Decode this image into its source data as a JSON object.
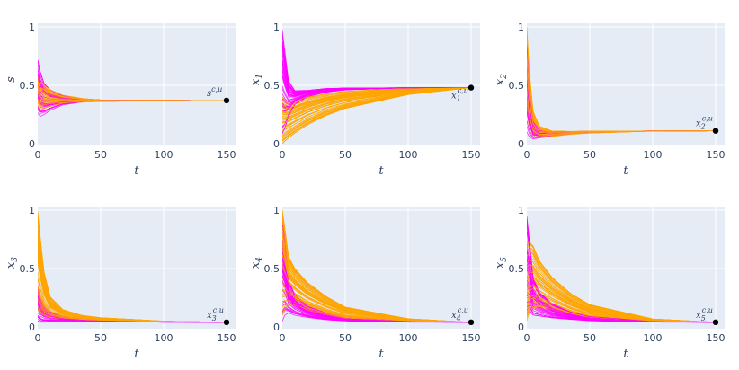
{
  "chart_data": [
    {
      "type": "line",
      "ylabel": "s",
      "xlabel": "t",
      "xlim": [
        0,
        150
      ],
      "ylim": [
        0,
        1
      ],
      "x_ticks": [
        "0",
        "50",
        "100",
        "150"
      ],
      "y_ticks": [
        "0",
        "0.5",
        "1"
      ],
      "grid": true,
      "endpoint": {
        "label": "s",
        "sup": "c,u",
        "sub": "",
        "x": 150,
        "y": 0.37
      },
      "series": [
        {
          "color": "#ff00ff",
          "count": 40,
          "x": [
            0,
            2,
            5,
            10,
            20,
            35,
            50,
            100,
            150
          ],
          "y_range": [
            [
              0.25,
              0.72
            ],
            [
              0.22,
              0.62
            ],
            [
              0.24,
              0.52
            ],
            [
              0.28,
              0.46
            ],
            [
              0.33,
              0.41
            ],
            [
              0.355,
              0.385
            ],
            [
              0.365,
              0.375
            ],
            [
              0.37,
              0.372
            ],
            [
              0.37,
              0.37
            ]
          ]
        },
        {
          "color": "#ffa500",
          "count": 60,
          "x": [
            0,
            2,
            5,
            10,
            20,
            35,
            50,
            100,
            150
          ],
          "y_range": [
            [
              0.3,
              0.6
            ],
            [
              0.28,
              0.55
            ],
            [
              0.3,
              0.52
            ],
            [
              0.32,
              0.47
            ],
            [
              0.34,
              0.42
            ],
            [
              0.355,
              0.39
            ],
            [
              0.36,
              0.375
            ],
            [
              0.37,
              0.372
            ],
            [
              0.37,
              0.37
            ]
          ]
        }
      ]
    },
    {
      "type": "line",
      "ylabel": "x",
      "ylabel_sub": "1",
      "xlabel": "t",
      "xlim": [
        0,
        150
      ],
      "ylim": [
        0,
        1
      ],
      "x_ticks": [
        "0",
        "50",
        "100",
        "150"
      ],
      "y_ticks": [
        "0",
        "0.5",
        "1"
      ],
      "grid": true,
      "endpoint": {
        "label": "x",
        "sup": "c,u",
        "sub": "1",
        "x": 150,
        "y": 0.48
      },
      "series": [
        {
          "color": "#ff00ff",
          "count": 40,
          "x": [
            0,
            2,
            5,
            10,
            20,
            35,
            50,
            100,
            150
          ],
          "y_range": [
            [
              0.05,
              1.0
            ],
            [
              0.1,
              0.82
            ],
            [
              0.22,
              0.55
            ],
            [
              0.33,
              0.46
            ],
            [
              0.4,
              0.46
            ],
            [
              0.44,
              0.475
            ],
            [
              0.46,
              0.478
            ],
            [
              0.478,
              0.48
            ],
            [
              0.48,
              0.48
            ]
          ]
        },
        {
          "color": "#ffa500",
          "count": 60,
          "x": [
            0,
            2,
            5,
            10,
            20,
            35,
            50,
            100,
            150
          ],
          "y_range": [
            [
              0.0,
              0.4
            ],
            [
              0.02,
              0.38
            ],
            [
              0.05,
              0.36
            ],
            [
              0.09,
              0.37
            ],
            [
              0.16,
              0.4
            ],
            [
              0.24,
              0.43
            ],
            [
              0.3,
              0.45
            ],
            [
              0.42,
              0.475
            ],
            [
              0.48,
              0.48
            ]
          ]
        }
      ]
    },
    {
      "type": "line",
      "ylabel": "x",
      "ylabel_sub": "2",
      "xlabel": "t",
      "xlim": [
        0,
        150
      ],
      "ylim": [
        0,
        1
      ],
      "x_ticks": [
        "0",
        "50",
        "100",
        "150"
      ],
      "y_ticks": [
        "0",
        "0.5",
        "1"
      ],
      "grid": true,
      "endpoint": {
        "label": "x",
        "sup": "c,u",
        "sub": "2",
        "x": 150,
        "y": 0.11
      },
      "series": [
        {
          "color": "#ff00ff",
          "count": 40,
          "x": [
            0,
            2,
            5,
            10,
            20,
            35,
            50,
            100,
            150
          ],
          "y_range": [
            [
              0.1,
              0.9
            ],
            [
              0.06,
              0.5
            ],
            [
              0.04,
              0.2
            ],
            [
              0.05,
              0.12
            ],
            [
              0.07,
              0.1
            ],
            [
              0.085,
              0.105
            ],
            [
              0.095,
              0.108
            ],
            [
              0.108,
              0.11
            ],
            [
              0.11,
              0.11
            ]
          ]
        },
        {
          "color": "#ffa500",
          "count": 60,
          "x": [
            0,
            2,
            5,
            10,
            20,
            35,
            50,
            100,
            150
          ],
          "y_range": [
            [
              0.2,
              1.0
            ],
            [
              0.12,
              0.62
            ],
            [
              0.07,
              0.28
            ],
            [
              0.05,
              0.15
            ],
            [
              0.06,
              0.11
            ],
            [
              0.08,
              0.106
            ],
            [
              0.09,
              0.108
            ],
            [
              0.107,
              0.11
            ],
            [
              0.11,
              0.11
            ]
          ]
        }
      ]
    },
    {
      "type": "line",
      "ylabel": "x",
      "ylabel_sub": "3",
      "xlabel": "t",
      "xlim": [
        0,
        150
      ],
      "ylim": [
        0,
        1
      ],
      "x_ticks": [
        "0",
        "50",
        "100",
        "150"
      ],
      "y_ticks": [
        "0",
        "0.5",
        "1"
      ],
      "grid": true,
      "endpoint": {
        "label": "x",
        "sup": "c,u",
        "sub": "3",
        "x": 150,
        "y": 0.04
      },
      "series": [
        {
          "color": "#ff00ff",
          "count": 40,
          "x": [
            0,
            2,
            5,
            10,
            20,
            35,
            50,
            100,
            150
          ],
          "y_range": [
            [
              0.05,
              0.35
            ],
            [
              0.04,
              0.25
            ],
            [
              0.04,
              0.18
            ],
            [
              0.05,
              0.13
            ],
            [
              0.05,
              0.09
            ],
            [
              0.05,
              0.07
            ],
            [
              0.045,
              0.06
            ],
            [
              0.04,
              0.045
            ],
            [
              0.04,
              0.04
            ]
          ]
        },
        {
          "color": "#ffa500",
          "count": 60,
          "x": [
            0,
            2,
            5,
            10,
            20,
            35,
            50,
            100,
            150
          ],
          "y_range": [
            [
              0.15,
              1.0
            ],
            [
              0.12,
              0.78
            ],
            [
              0.1,
              0.48
            ],
            [
              0.08,
              0.26
            ],
            [
              0.07,
              0.15
            ],
            [
              0.06,
              0.1
            ],
            [
              0.055,
              0.08
            ],
            [
              0.045,
              0.05
            ],
            [
              0.04,
              0.04
            ]
          ]
        }
      ]
    },
    {
      "type": "line",
      "ylabel": "x",
      "ylabel_sub": "4",
      "xlabel": "t",
      "xlim": [
        0,
        150
      ],
      "ylim": [
        0,
        1
      ],
      "x_ticks": [
        "0",
        "50",
        "100",
        "150"
      ],
      "y_ticks": [
        "0",
        "0.5",
        "1"
      ],
      "grid": true,
      "endpoint": {
        "label": "x",
        "sup": "c,u",
        "sub": "4",
        "x": 150,
        "y": 0.04
      },
      "series": [
        {
          "color": "#ff00ff",
          "count": 40,
          "x": [
            0,
            2,
            5,
            10,
            20,
            35,
            50,
            100,
            150
          ],
          "y_range": [
            [
              0.05,
              0.95
            ],
            [
              0.1,
              0.75
            ],
            [
              0.12,
              0.4
            ],
            [
              0.1,
              0.28
            ],
            [
              0.08,
              0.18
            ],
            [
              0.06,
              0.12
            ],
            [
              0.05,
              0.08
            ],
            [
              0.04,
              0.05
            ],
            [
              0.04,
              0.04
            ]
          ]
        },
        {
          "color": "#ffa500",
          "count": 60,
          "x": [
            0,
            2,
            5,
            10,
            20,
            35,
            50,
            100,
            150
          ],
          "y_range": [
            [
              0.1,
              1.0
            ],
            [
              0.14,
              0.85
            ],
            [
              0.18,
              0.6
            ],
            [
              0.18,
              0.5
            ],
            [
              0.14,
              0.38
            ],
            [
              0.1,
              0.26
            ],
            [
              0.07,
              0.17
            ],
            [
              0.045,
              0.07
            ],
            [
              0.04,
              0.04
            ]
          ]
        }
      ]
    },
    {
      "type": "line",
      "ylabel": "x",
      "ylabel_sub": "5",
      "xlabel": "t",
      "xlim": [
        0,
        150
      ],
      "ylim": [
        0,
        1
      ],
      "x_ticks": [
        "0",
        "50",
        "100",
        "150"
      ],
      "y_ticks": [
        "0",
        "0.5",
        "1"
      ],
      "grid": true,
      "endpoint": {
        "label": "x",
        "sup": "c,u",
        "sub": "5",
        "x": 150,
        "y": 0.04
      },
      "series": [
        {
          "color": "#ff00ff",
          "count": 40,
          "x": [
            0,
            2,
            5,
            10,
            20,
            35,
            50,
            100,
            150
          ],
          "y_range": [
            [
              0.05,
              0.95
            ],
            [
              0.1,
              0.75
            ],
            [
              0.08,
              0.42
            ],
            [
              0.08,
              0.3
            ],
            [
              0.07,
              0.2
            ],
            [
              0.06,
              0.13
            ],
            [
              0.05,
              0.09
            ],
            [
              0.04,
              0.05
            ],
            [
              0.04,
              0.04
            ]
          ]
        },
        {
          "color": "#ffa500",
          "count": 60,
          "x": [
            0,
            2,
            5,
            10,
            20,
            35,
            50,
            100,
            150
          ],
          "y_range": [
            [
              0.05,
              0.8
            ],
            [
              0.12,
              0.78
            ],
            [
              0.15,
              0.74
            ],
            [
              0.16,
              0.6
            ],
            [
              0.14,
              0.45
            ],
            [
              0.1,
              0.3
            ],
            [
              0.07,
              0.2
            ],
            [
              0.045,
              0.07
            ],
            [
              0.04,
              0.04
            ]
          ]
        }
      ]
    }
  ]
}
